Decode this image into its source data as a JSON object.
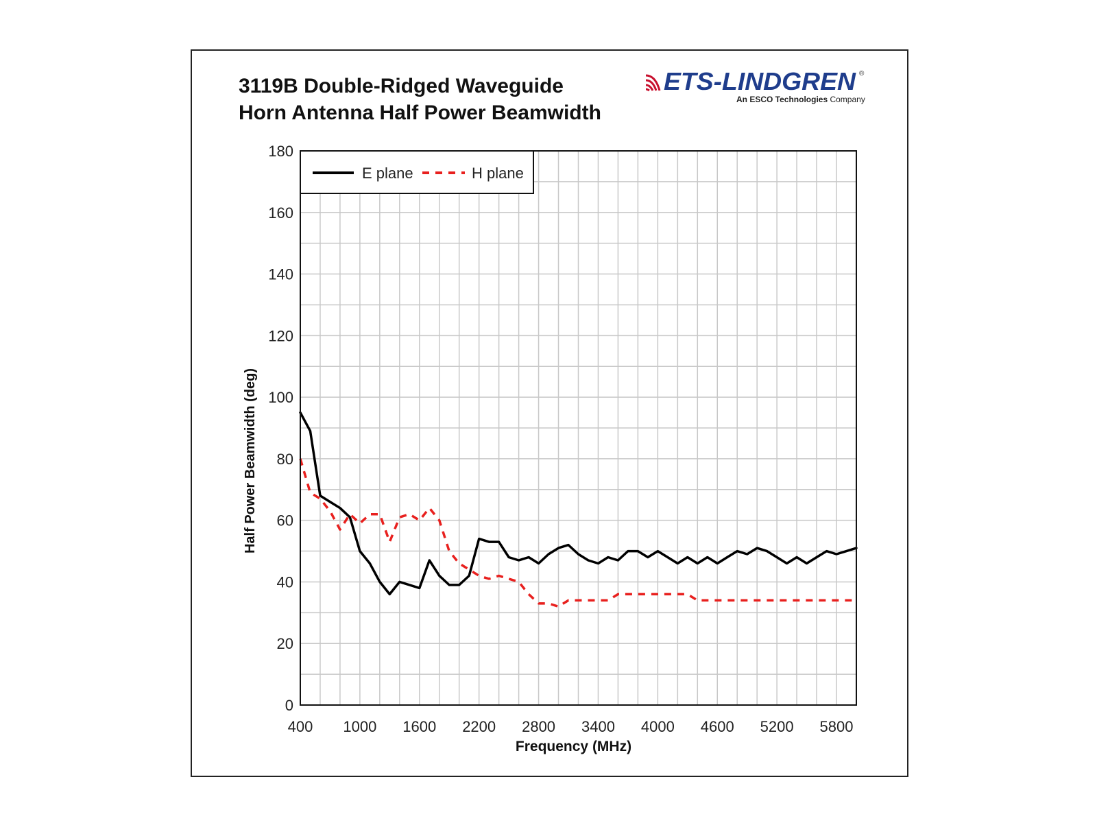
{
  "logo": {
    "brand": "ETS-LINDGREN",
    "registered": "®",
    "tagline_bold": "An ESCO Technologies",
    "tagline_rest": " Company",
    "brand_color": "#c8102e",
    "brand_blue": "#1f3d8c"
  },
  "chart_data": {
    "type": "line",
    "title": [
      "3119B Double-Ridged Waveguide",
      "Horn Antenna Half Power Beamwidth"
    ],
    "xlabel": "Frequency (MHz)",
    "ylabel": "Half Power Beamwidth (deg)",
    "xlim": [
      400,
      6000
    ],
    "ylim": [
      0,
      180
    ],
    "xticks": [
      400,
      1000,
      1600,
      2200,
      2800,
      3400,
      4000,
      4600,
      5200,
      5800
    ],
    "yticks": [
      0,
      20,
      40,
      60,
      80,
      100,
      120,
      140,
      160,
      180
    ],
    "grid": true,
    "legend_position": "top-left",
    "series": [
      {
        "name": "E plane",
        "color": "#000000",
        "style": "solid",
        "x": [
          400,
          500,
          600,
          700,
          800,
          900,
          1000,
          1100,
          1200,
          1300,
          1400,
          1500,
          1600,
          1700,
          1800,
          1900,
          2000,
          2100,
          2200,
          2300,
          2400,
          2500,
          2600,
          2700,
          2800,
          2900,
          3000,
          3100,
          3200,
          3300,
          3400,
          3500,
          3600,
          3700,
          3800,
          3900,
          4000,
          4100,
          4200,
          4300,
          4400,
          4500,
          4600,
          4700,
          4800,
          4900,
          5000,
          5100,
          5200,
          5300,
          5400,
          5500,
          5600,
          5700,
          5800,
          5900,
          6000
        ],
        "values": [
          95,
          89,
          68,
          66,
          64,
          61,
          50,
          46,
          40,
          36,
          40,
          39,
          38,
          47,
          42,
          39,
          39,
          42,
          54,
          53,
          53,
          48,
          47,
          48,
          46,
          49,
          51,
          52,
          49,
          47,
          46,
          48,
          47,
          50,
          50,
          48,
          50,
          48,
          46,
          48,
          46,
          48,
          46,
          48,
          50,
          49,
          51,
          50,
          48,
          46,
          48,
          46,
          48,
          50,
          49,
          50,
          51
        ]
      },
      {
        "name": "H plane",
        "color": "#e8201e",
        "style": "dashed",
        "x": [
          400,
          500,
          600,
          700,
          800,
          900,
          1000,
          1100,
          1200,
          1300,
          1400,
          1500,
          1600,
          1700,
          1800,
          1900,
          2000,
          2100,
          2200,
          2300,
          2400,
          2500,
          2600,
          2700,
          2800,
          2900,
          3000,
          3100,
          3200,
          3300,
          3400,
          3500,
          3600,
          3700,
          3800,
          3900,
          4000,
          4100,
          4200,
          4300,
          4400,
          4500,
          4600,
          4700,
          4800,
          4900,
          5000,
          5100,
          5200,
          5300,
          5400,
          5500,
          5600,
          5700,
          5800,
          5900,
          6000
        ],
        "values": [
          80,
          69,
          67,
          63,
          57,
          62,
          59,
          62,
          62,
          53,
          61,
          62,
          60,
          64,
          60,
          50,
          46,
          44,
          42,
          41,
          42,
          41,
          40,
          36,
          33,
          33,
          32,
          34,
          34,
          34,
          34,
          34,
          36,
          36,
          36,
          36,
          36,
          36,
          36,
          36,
          34,
          34,
          34,
          34,
          34,
          34,
          34,
          34,
          34,
          34,
          34,
          34,
          34,
          34,
          34,
          34,
          34
        ]
      }
    ]
  }
}
